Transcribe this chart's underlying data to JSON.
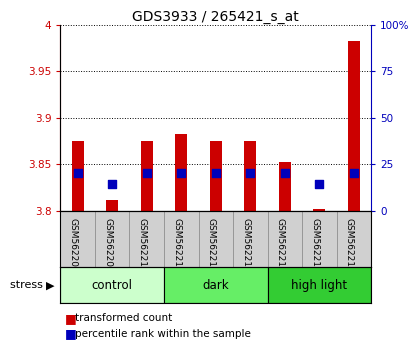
{
  "title": "GDS3933 / 265421_s_at",
  "samples": [
    "GSM562208",
    "GSM562209",
    "GSM562210",
    "GSM562211",
    "GSM562212",
    "GSM562213",
    "GSM562214",
    "GSM562215",
    "GSM562216"
  ],
  "transformed_count": [
    3.875,
    3.812,
    3.875,
    3.883,
    3.875,
    3.875,
    3.852,
    3.802,
    3.983
  ],
  "percentile_rank": [
    20.5,
    14.5,
    20.5,
    20.5,
    20.5,
    20.5,
    20.5,
    14.5,
    20.5
  ],
  "groups": [
    {
      "label": "control",
      "samples": [
        0,
        1,
        2
      ],
      "color": "#ccffcc"
    },
    {
      "label": "dark",
      "samples": [
        3,
        4,
        5
      ],
      "color": "#66ee66"
    },
    {
      "label": "high light",
      "samples": [
        6,
        7,
        8
      ],
      "color": "#33cc33"
    }
  ],
  "ylim": [
    3.8,
    4.0
  ],
  "yticks": [
    3.8,
    3.85,
    3.9,
    3.95,
    4.0
  ],
  "ytick_labels": [
    "3.8",
    "3.85",
    "3.9",
    "3.95",
    "4"
  ],
  "right_ylim": [
    0,
    100
  ],
  "right_yticks": [
    0,
    25,
    50,
    75,
    100
  ],
  "right_ytick_labels": [
    "0",
    "25",
    "50",
    "75",
    "100%"
  ],
  "bar_color": "#cc0000",
  "dot_color": "#0000bb",
  "bar_width": 0.35,
  "dot_size": 30,
  "background_color": "#ffffff",
  "label_bg_color": "#d0d0d0",
  "xlabel_color": "#cc0000",
  "right_axis_color": "#0000bb",
  "grid_color": "#000000"
}
